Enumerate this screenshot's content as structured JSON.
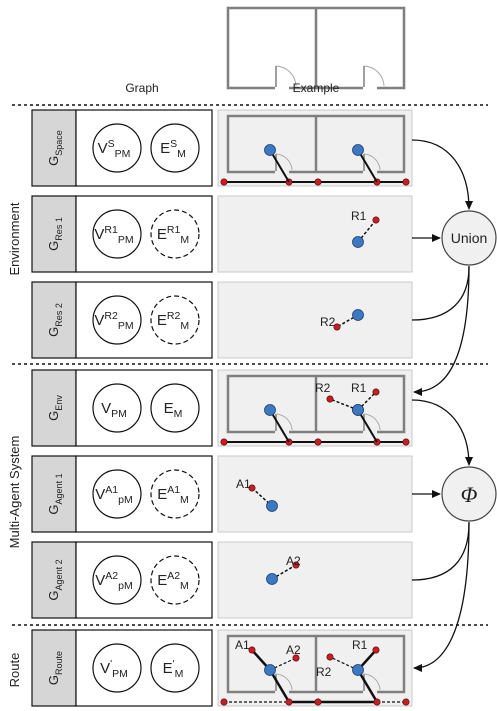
{
  "header": {
    "graph_label": "Graph",
    "example_label": "Example"
  },
  "sections": [
    {
      "label": "Environment"
    },
    {
      "label": "Multi-Agent System"
    },
    {
      "label": "Route"
    }
  ],
  "rows": [
    {
      "g_main": "G",
      "g_sub": "Space",
      "v_main": "V",
      "v_sup": "S",
      "v_sub": "PM",
      "e_main": "E",
      "e_sup": "S",
      "e_sub": "M",
      "e_dashed": false
    },
    {
      "g_main": "G",
      "g_sub": "Res 1",
      "v_main": "V",
      "v_sup": "R1",
      "v_sub": "PM",
      "e_main": "E",
      "e_sup": "R1",
      "e_sub": "M",
      "e_dashed": true
    },
    {
      "g_main": "G",
      "g_sub": "Res 2",
      "v_main": "V",
      "v_sup": "R2",
      "v_sub": "PM",
      "e_main": "E",
      "e_sup": "R2",
      "e_sub": "M",
      "e_dashed": true
    },
    {
      "g_main": "G",
      "g_sub": "Env",
      "v_main": "V",
      "v_sup": "",
      "v_sub": "PM",
      "e_main": "E",
      "e_sup": "",
      "e_sub": "M",
      "e_dashed": false
    },
    {
      "g_main": "G",
      "g_sub": "Agent 1",
      "v_main": "V",
      "v_sup": "A1",
      "v_sub": "pM",
      "e_main": "E",
      "e_sup": "A1",
      "e_sub": "M",
      "e_dashed": true
    },
    {
      "g_main": "G",
      "g_sub": "Agent 2",
      "v_main": "V",
      "v_sup": "A2",
      "v_sub": "pM",
      "e_main": "E",
      "e_sup": "A2",
      "e_sub": "M",
      "e_dashed": true
    },
    {
      "g_main": "G",
      "g_sub": "Route",
      "v_main": "V",
      "v_sup": "'",
      "v_sub": "PM",
      "e_main": "E",
      "e_sup": "'",
      "e_sub": "M",
      "e_dashed": false
    }
  ],
  "operators": {
    "union": "Union",
    "phi": "Φ"
  },
  "example_labels": {
    "r1": "R1",
    "r2": "R2",
    "a1": "A1",
    "a2": "A2"
  },
  "colors": {
    "node_blue": "#3d78c3",
    "node_red": "#c0202a",
    "panel_bg": "#f0f0f0",
    "g_tab": "#d6d6d6",
    "wall": "#7f7f7f"
  }
}
